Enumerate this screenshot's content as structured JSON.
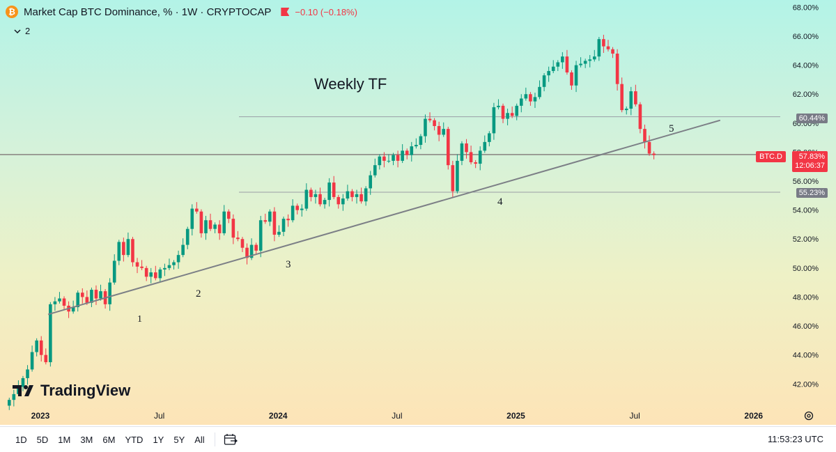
{
  "header": {
    "coin_symbol": "₿",
    "title": "Market Cap BTC Dominance, % · 1W · CRYPTOCAP",
    "change": "−0.10 (−0.18%)",
    "legend_count": "2"
  },
  "colors": {
    "up": "#089981",
    "down": "#f23645",
    "line": "#7c7f86",
    "hline": "#787b86"
  },
  "annotations": {
    "timeframe": "Weekly TF",
    "touch_points": [
      "1",
      "2",
      "3",
      "4",
      "5"
    ]
  },
  "price_tags": {
    "level_1": "60.44%",
    "level_2": "55.23%",
    "current": "57.83%",
    "countdown": "12:06:37",
    "symbol": "BTC.D"
  },
  "brand": {
    "logo_text": "TradingView"
  },
  "toolbar": {
    "ranges": [
      "1D",
      "5D",
      "1M",
      "3M",
      "6M",
      "YTD",
      "1Y",
      "5Y",
      "All"
    ],
    "clock": "11:53:23 UTC"
  },
  "chart_data": {
    "type": "candlestick",
    "title": "Market Cap BTC Dominance, %",
    "interval": "1W",
    "y_axis": {
      "ticks": [
        "42.00%",
        "44.00%",
        "46.00%",
        "48.00%",
        "50.00%",
        "52.00%",
        "54.00%",
        "56.00%",
        "58.00%",
        "60.00%",
        "62.00%",
        "64.00%",
        "66.00%",
        "68.00%"
      ],
      "range": [
        41.1,
        68.5
      ]
    },
    "x_axis": {
      "ticks": [
        "2023",
        "Jul",
        "2024",
        "Jul",
        "2025",
        "Jul",
        "2026"
      ],
      "range_weeks": [
        0,
        176
      ]
    },
    "horizontal_levels": [
      60.44,
      55.23,
      57.83
    ],
    "trendline": {
      "from": {
        "week": 9,
        "value": 46.8
      },
      "to": {
        "week": 156,
        "value": 60.2
      }
    },
    "closes": [
      40.9,
      41.3,
      41.8,
      42.4,
      43.0,
      44.2,
      45.0,
      44.0,
      43.5,
      47.5,
      47.7,
      47.9,
      47.4,
      47.0,
      47.3,
      48.3,
      48.0,
      47.6,
      48.5,
      47.9,
      48.4,
      47.5,
      49.0,
      50.5,
      51.8,
      50.9,
      52.0,
      50.4,
      50.1,
      50.0,
      49.4,
      49.7,
      49.3,
      49.9,
      50.0,
      50.2,
      50.4,
      50.9,
      51.6,
      52.7,
      54.1,
      53.9,
      52.4,
      53.3,
      52.7,
      53.0,
      52.4,
      53.9,
      53.4,
      52.1,
      52.0,
      51.4,
      50.7,
      51.6,
      51.2,
      53.3,
      53.2,
      53.9,
      52.3,
      52.5,
      53.4,
      53.3,
      54.3,
      54.0,
      54.1,
      55.4,
      54.9,
      55.1,
      54.4,
      54.7,
      55.9,
      54.9,
      54.4,
      54.8,
      55.3,
      54.9,
      55.1,
      54.6,
      55.5,
      56.4,
      57.1,
      57.7,
      57.4,
      57.4,
      57.8,
      57.4,
      58.1,
      57.8,
      58.4,
      58.5,
      59.1,
      60.3,
      60.2,
      59.8,
      59.2,
      59.6,
      57.1,
      55.3,
      57.4,
      58.6,
      58.0,
      57.3,
      57.2,
      58.1,
      58.7,
      59.3,
      61.1,
      61.2,
      60.3,
      60.7,
      60.5,
      61.2,
      61.7,
      62.0,
      61.5,
      61.8,
      62.5,
      63.3,
      63.6,
      63.9,
      64.2,
      64.6,
      63.5,
      62.6,
      64.0,
      64.1,
      64.3,
      64.4,
      64.6,
      65.8,
      65.3,
      65.1,
      64.8,
      62.7,
      60.9,
      61.0,
      62.2,
      61.3,
      59.6,
      58.7,
      57.9,
      57.8
    ]
  }
}
